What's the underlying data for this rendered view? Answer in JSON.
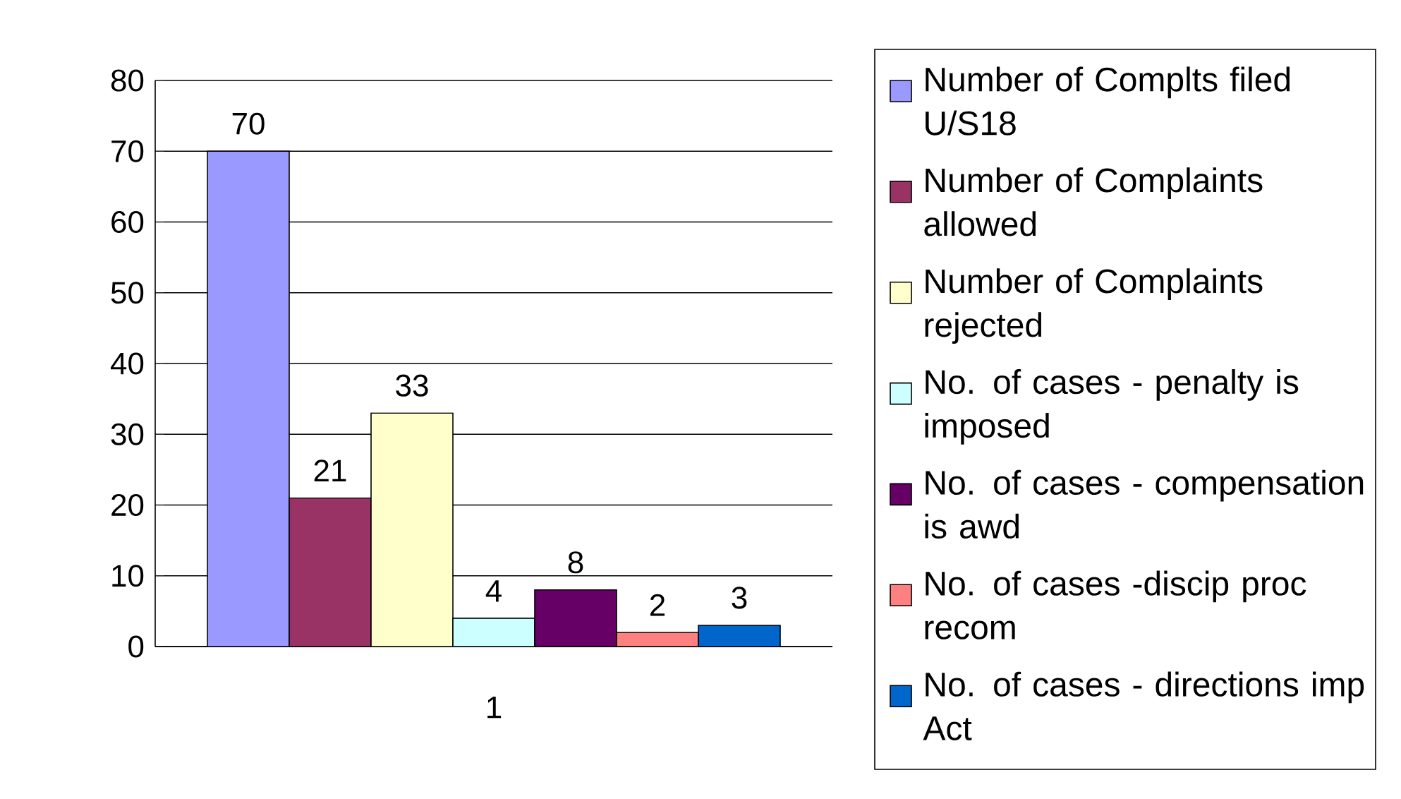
{
  "chart_data": {
    "type": "bar",
    "categories": [
      "1"
    ],
    "series": [
      {
        "name": "Number of Complts filed U/S18",
        "color": "#9999ff",
        "values": [
          70
        ]
      },
      {
        "name": "Number of Complaints allowed",
        "color": "#993366",
        "values": [
          21
        ]
      },
      {
        "name": "Number of Complaints rejected",
        "color": "#ffffcc",
        "values": [
          33
        ]
      },
      {
        "name": "No. of cases - penalty is imposed",
        "color": "#ccffff",
        "values": [
          4
        ]
      },
      {
        "name": "No. of cases - compensation is awd",
        "color": "#660066",
        "values": [
          8
        ]
      },
      {
        "name": "No. of cases -discip proc recom",
        "color": "#ff8080",
        "values": [
          2
        ]
      },
      {
        "name": "No. of cases - directions imp Act",
        "color": "#0066cc",
        "values": [
          3
        ]
      }
    ],
    "ylim": [
      0,
      80
    ],
    "yticks": [
      0,
      10,
      20,
      30,
      40,
      50,
      60,
      70,
      80
    ],
    "grid": "y",
    "legend": "right",
    "data_labels": true
  }
}
